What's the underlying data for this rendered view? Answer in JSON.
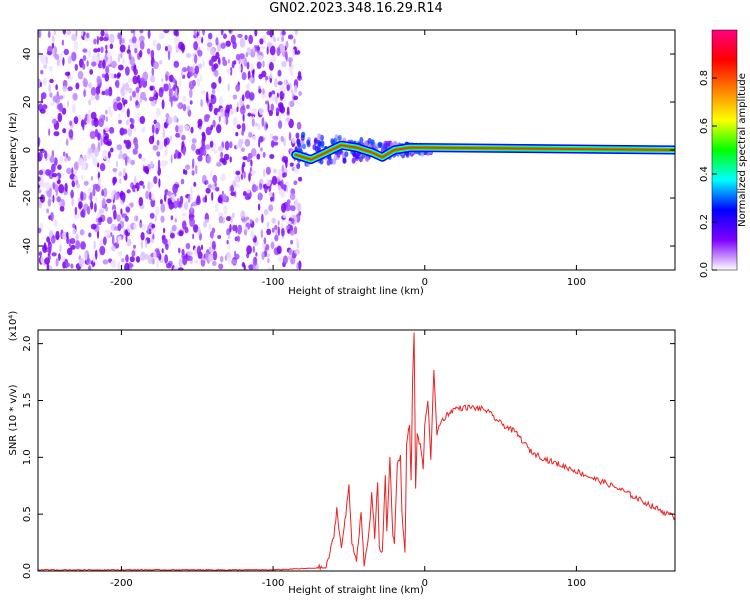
{
  "figure_title": "GN02.2023.348.16.29.R14",
  "chart_data": [
    {
      "type": "heatmap",
      "xlabel": "Height of straight line (km)",
      "ylabel": "Frequency (Hz)",
      "xlim": [
        -255,
        165
      ],
      "ylim": [
        -50,
        50
      ],
      "x_ticks": [
        -200,
        -100,
        0,
        100
      ],
      "y_ticks": [
        -40,
        -20,
        0,
        20,
        40
      ],
      "x_tick_labels": [
        "-200",
        "-100",
        "0",
        "100"
      ],
      "y_tick_labels": [
        "-40",
        "-20",
        "0",
        "20",
        "40"
      ],
      "noise_region_x": [
        -255,
        -82
      ],
      "signal_track": {
        "x": [
          -85,
          -75,
          -65,
          -55,
          -45,
          -40,
          -35,
          -28,
          -20,
          -10,
          0,
          165
        ],
        "frequency": [
          -2,
          -4,
          -1,
          2,
          1,
          0,
          -1,
          -3,
          0,
          1,
          1,
          0
        ]
      },
      "colorbar": {
        "label": "Normalized spectral amplitude",
        "range": [
          0,
          1
        ],
        "ticks": [
          0.0,
          0.2,
          0.4,
          0.6,
          0.8
        ],
        "tick_labels": [
          "0.0",
          "0.2",
          "0.4",
          "0.6",
          "0.8"
        ],
        "colors": [
          "#ffffff",
          "#7f00ff",
          "#0000ff",
          "#00ffff",
          "#00ff00",
          "#ffff00",
          "#ff8000",
          "#ff0000",
          "#ff0080"
        ]
      }
    },
    {
      "type": "line",
      "xlabel": "Height of straight line (km)",
      "ylabel": "SNR (10 * v/v)",
      "y_scale_label": "(x10⁴)",
      "xlim": [
        -255,
        165
      ],
      "ylim": [
        0,
        2.12
      ],
      "x_ticks": [
        -200,
        -100,
        0,
        100
      ],
      "y_ticks": [
        0.0,
        0.5,
        1.0,
        1.5,
        2.0
      ],
      "x_tick_labels": [
        "-200",
        "-100",
        "0",
        "100"
      ],
      "y_tick_labels": [
        "0.0",
        "0.5",
        "1.0",
        "1.5",
        "2.0"
      ],
      "line_color": "#ee2222",
      "x": [
        -255,
        -100,
        -65,
        -60,
        -58,
        -55,
        -52,
        -50,
        -48,
        -45,
        -42,
        -40,
        -38,
        -36,
        -35,
        -33,
        -31,
        -30,
        -28,
        -26,
        -25,
        -23,
        -21,
        -20,
        -18,
        -16,
        -15,
        -13,
        -12,
        -10,
        -9,
        -8,
        -7,
        -6,
        -5,
        -3,
        -1,
        0,
        2,
        4,
        6,
        8,
        10,
        15,
        20,
        30,
        40,
        50,
        60,
        70,
        80,
        90,
        100,
        110,
        120,
        130,
        140,
        150,
        165
      ],
      "y": [
        0.01,
        0.01,
        0.03,
        0.3,
        0.55,
        0.2,
        0.5,
        0.75,
        0.25,
        0.1,
        0.5,
        0.05,
        0.2,
        0.45,
        0.7,
        0.3,
        0.8,
        0.2,
        0.15,
        0.85,
        0.35,
        0.98,
        0.3,
        0.25,
        0.95,
        1.0,
        0.5,
        0.15,
        1.1,
        1.3,
        0.8,
        1.7,
        2.12,
        0.7,
        1.2,
        1.1,
        0.9,
        1.3,
        1.5,
        1.0,
        1.75,
        1.2,
        1.3,
        1.38,
        1.43,
        1.44,
        1.42,
        1.3,
        1.22,
        1.05,
        0.98,
        0.93,
        0.88,
        0.82,
        0.77,
        0.71,
        0.64,
        0.57,
        0.47
      ]
    }
  ]
}
